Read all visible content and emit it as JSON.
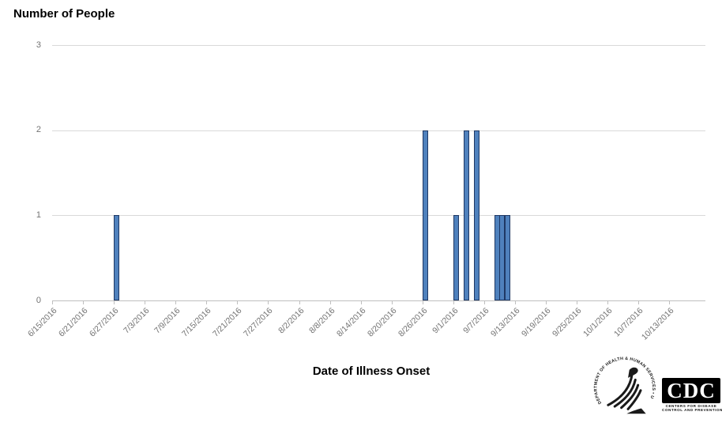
{
  "chart_title": "Number of People",
  "x_axis_title": "Date of Illness Onset",
  "chart_data": {
    "type": "bar",
    "title": "Number of People",
    "xlabel": "Date of Illness Onset",
    "ylabel": "",
    "ylim": [
      0,
      3
    ],
    "yticks": [
      0,
      1,
      2,
      3
    ],
    "grid": "horizontal",
    "legend_position": "none",
    "x_axis_start": "6/15/2016",
    "x_axis_end": "10/19/2016",
    "x_label_interval_days": 6,
    "x_tick_labels": [
      "6/15/2016",
      "6/21/2016",
      "6/27/2016",
      "7/3/2016",
      "7/9/2016",
      "7/15/2016",
      "7/21/2016",
      "7/27/2016",
      "8/2/2016",
      "8/8/2016",
      "8/14/2016",
      "8/20/2016",
      "8/26/2016",
      "9/1/2016",
      "9/7/2016",
      "9/13/2016",
      "9/19/2016",
      "9/25/2016",
      "10/1/2016",
      "10/7/2016",
      "10/13/2016"
    ],
    "bars": [
      {
        "date": "6/27/2016",
        "value": 1
      },
      {
        "date": "8/26/2016",
        "value": 2
      },
      {
        "date": "9/1/2016",
        "value": 1
      },
      {
        "date": "9/3/2016",
        "value": 2
      },
      {
        "date": "9/5/2016",
        "value": 2
      },
      {
        "date": "9/9/2016",
        "value": 1
      },
      {
        "date": "9/10/2016",
        "value": 1
      },
      {
        "date": "9/11/2016",
        "value": 1
      }
    ],
    "bar_fill_color": "#4f81bd",
    "bar_border_color": "#1f3864",
    "gridline_color": "#d9d9d9",
    "axis_line_color": "#bfbfbf",
    "tick_label_color": "#737373"
  },
  "footer": {
    "hhs_seal_text": "DEPARTMENT OF HEALTH & HUMAN SERVICES • USA",
    "cdc_letters": "CDC",
    "cdc_sub_line1": "CENTERS FOR DISEASE",
    "cdc_sub_line2": "CONTROL AND PREVENTION"
  }
}
